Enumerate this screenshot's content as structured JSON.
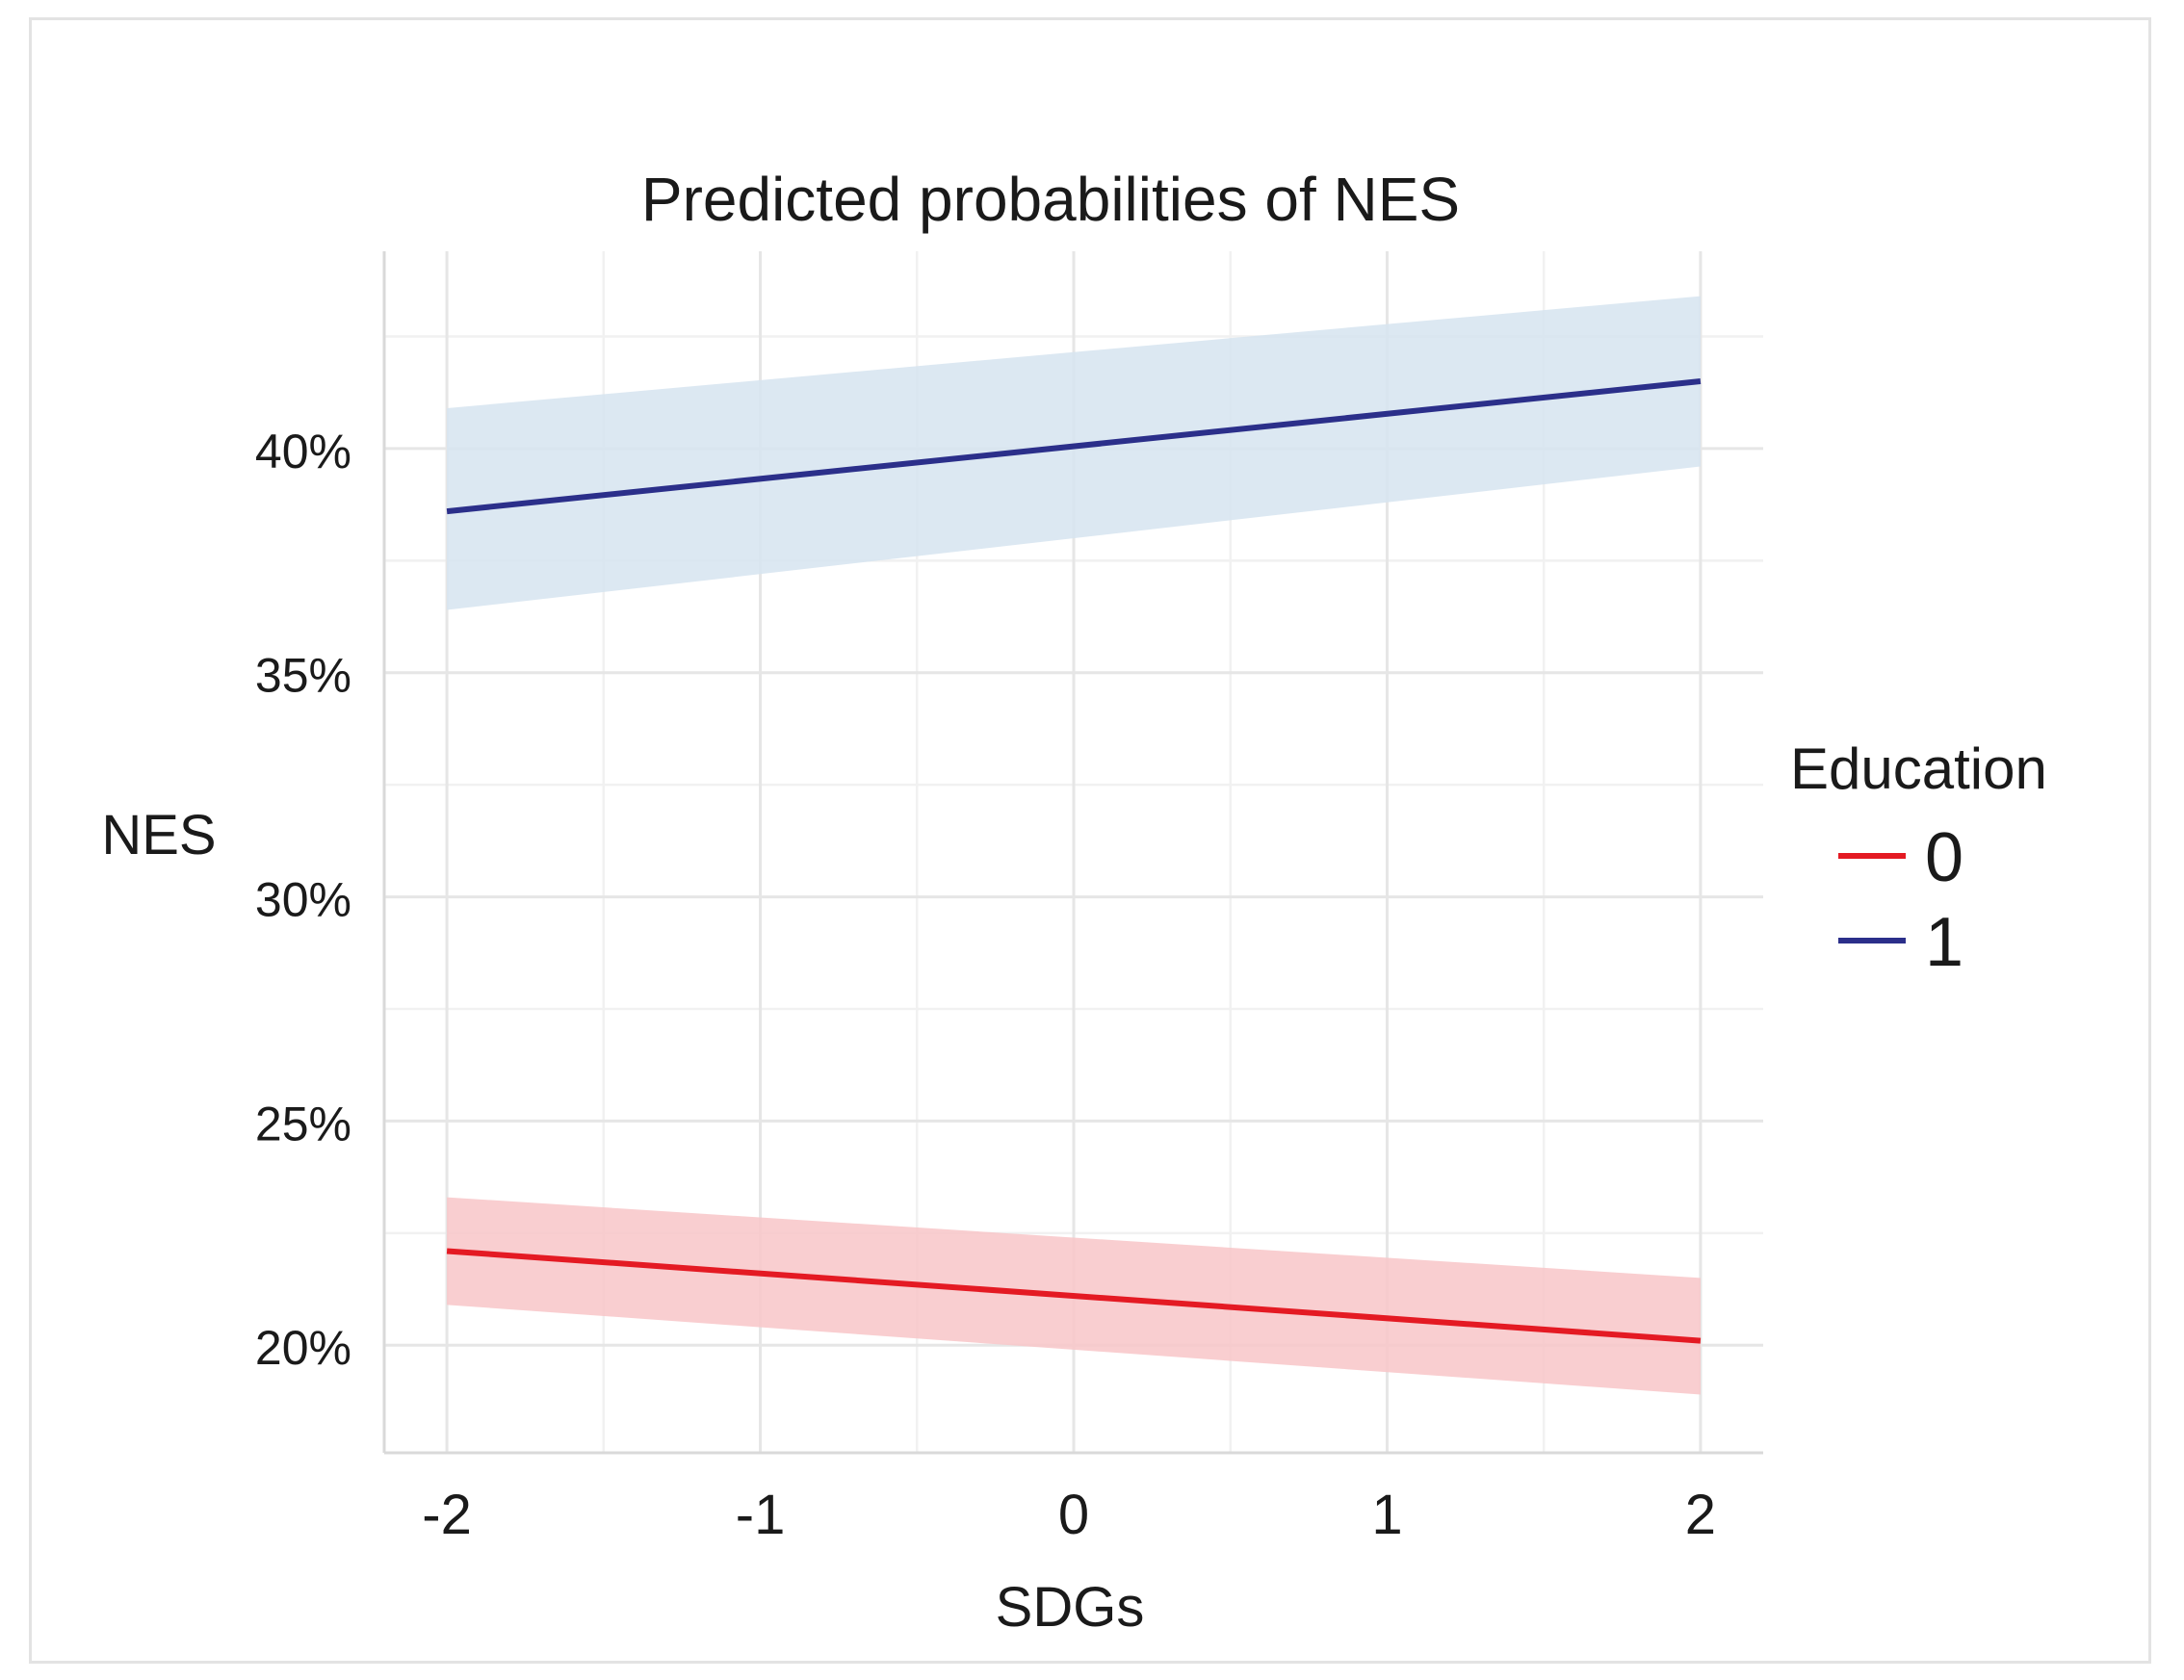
{
  "chart_data": {
    "type": "line",
    "title": "Predicted probabilities of NES",
    "xlabel": "SDGs",
    "ylabel": "NES",
    "xlim": [
      -2.2,
      2.2
    ],
    "ylim": [
      17.6,
      44.4
    ],
    "x_ticks": [
      -2,
      -1,
      0,
      1,
      2
    ],
    "x_tick_labels": [
      "-2",
      "-1",
      "0",
      "1",
      "2"
    ],
    "y_ticks": [
      20,
      25,
      30,
      35,
      40
    ],
    "y_tick_labels": [
      "20%",
      "25%",
      "30%",
      "35%",
      "40%"
    ],
    "grid": true,
    "legend": {
      "title": "Education",
      "position": "right"
    },
    "series": [
      {
        "name": "0",
        "color": "#e41a23",
        "band_color": "#f8c6c8",
        "x": [
          -2,
          2
        ],
        "values": [
          22.1,
          20.1
        ],
        "ci_lower": [
          20.9,
          18.9
        ],
        "ci_upper": [
          23.3,
          21.5
        ]
      },
      {
        "name": "1",
        "color": "#2b2f8a",
        "band_color": "#d6e4f0",
        "x": [
          -2,
          2
        ],
        "values": [
          38.6,
          41.5
        ],
        "ci_lower": [
          36.4,
          39.6
        ],
        "ci_upper": [
          40.9,
          43.4
        ]
      }
    ]
  }
}
